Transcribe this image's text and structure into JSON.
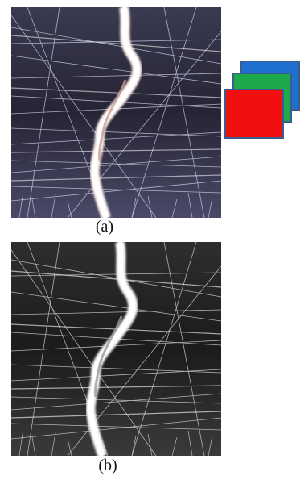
{
  "figure": {
    "panels": [
      {
        "label": "(a)",
        "kind": "color-micrograph",
        "description_icon": "crack-scratch-image-color"
      },
      {
        "label": "(b)",
        "kind": "grayscale-micrograph",
        "description_icon": "crack-scratch-image-grayscale"
      }
    ],
    "channels": [
      {
        "name": "blue-channel-icon",
        "color": "#1f6fd1"
      },
      {
        "name": "green-channel-icon",
        "color": "#1ea94b"
      },
      {
        "name": "red-channel-icon",
        "color": "#f20f10"
      }
    ]
  }
}
